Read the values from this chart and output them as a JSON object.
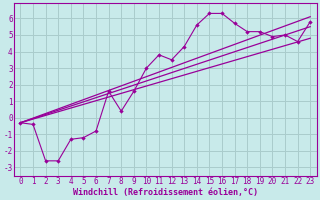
{
  "xlabel": "Windchill (Refroidissement éolien,°C)",
  "bg_color": "#c8eaea",
  "grid_color": "#aacccc",
  "line_color": "#990099",
  "xlim": [
    -0.5,
    23.5
  ],
  "ylim": [
    -3.5,
    6.9
  ],
  "yticks": [
    -3,
    -2,
    -1,
    0,
    1,
    2,
    3,
    4,
    5,
    6
  ],
  "xticks": [
    0,
    1,
    2,
    3,
    4,
    5,
    6,
    7,
    8,
    9,
    10,
    11,
    12,
    13,
    14,
    15,
    16,
    17,
    18,
    19,
    20,
    21,
    22,
    23
  ],
  "scatter_x": [
    0,
    1,
    2,
    3,
    4,
    5,
    6,
    7,
    8,
    9,
    10,
    11,
    12,
    13,
    14,
    15,
    16,
    17,
    18,
    19,
    20,
    21,
    22,
    23
  ],
  "scatter_y": [
    -0.3,
    -0.4,
    -2.6,
    -2.6,
    -1.3,
    -1.2,
    -0.8,
    1.6,
    0.4,
    1.6,
    3.0,
    3.8,
    3.5,
    4.3,
    5.6,
    6.3,
    6.3,
    5.7,
    5.2,
    5.2,
    4.9,
    5.0,
    4.6,
    5.8
  ],
  "reg_lines": [
    {
      "x0": 0,
      "y0": -0.3,
      "x1": 23,
      "y1": 4.8
    },
    {
      "x0": 0,
      "y0": -0.3,
      "x1": 23,
      "y1": 5.5
    },
    {
      "x0": 0,
      "y0": -0.3,
      "x1": 23,
      "y1": 6.1
    }
  ],
  "tick_fontsize": 5.5,
  "xlabel_fontsize": 6.0
}
